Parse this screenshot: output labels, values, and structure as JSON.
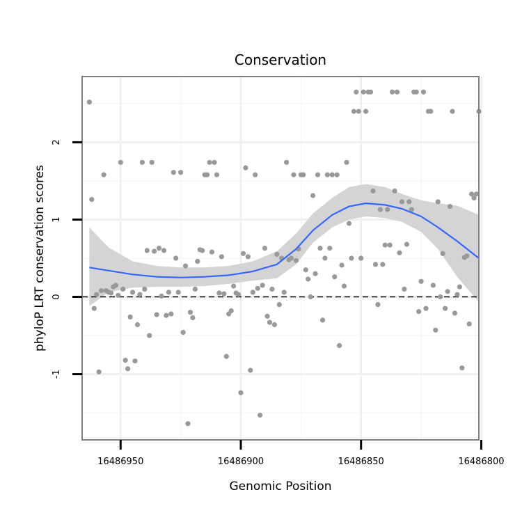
{
  "chart_data": {
    "type": "scatter",
    "title": "Conservation",
    "xlabel": "Genomic Position",
    "ylabel": "phyloP LRT conservation scores",
    "x_reversed": true,
    "xlim": [
      16486966,
      16486801
    ],
    "ylim": [
      -1.85,
      2.85
    ],
    "x_ticks": [
      16486950,
      16486900,
      16486850,
      16486800
    ],
    "x_tick_labels": [
      "16486950",
      "16486900",
      "16486850",
      "16486800"
    ],
    "y_ticks": [
      -1,
      0,
      1,
      2
    ],
    "y_tick_labels": [
      "-1",
      "0",
      "1",
      "2"
    ],
    "grid": true,
    "reference_line": {
      "y": 0,
      "style": "dashed"
    },
    "colors": {
      "points": "#999999",
      "smooth": "#3366ff",
      "ribbon": "#d4d4d4"
    },
    "points": [
      [
        16486963,
        2.52
      ],
      [
        16486962,
        1.26
      ],
      [
        16486961,
        -0.15
      ],
      [
        16486960,
        0.03
      ],
      [
        16486959,
        -0.97
      ],
      [
        16486958,
        0.08
      ],
      [
        16486957,
        1.58
      ],
      [
        16486956,
        0.08
      ],
      [
        16486955,
        0.06
      ],
      [
        16486954,
        0.05
      ],
      [
        16486953,
        0.13
      ],
      [
        16486952,
        0.15
      ],
      [
        16486951,
        0.02
      ],
      [
        16486950,
        1.74
      ],
      [
        16486949,
        0.1
      ],
      [
        16486948,
        -0.82
      ],
      [
        16486947,
        -0.93
      ],
      [
        16486946,
        -0.26
      ],
      [
        16486945,
        0.06
      ],
      [
        16486944,
        -0.83
      ],
      [
        16486943,
        -0.36
      ],
      [
        16486942,
        0.03
      ],
      [
        16486941,
        1.74
      ],
      [
        16486940,
        0.1
      ],
      [
        16486939,
        0.6
      ],
      [
        16486938,
        -0.5
      ],
      [
        16486937,
        1.74
      ],
      [
        16486936,
        0.59
      ],
      [
        16486935,
        -0.23
      ],
      [
        16486934,
        0.63
      ],
      [
        16486933,
        0.01
      ],
      [
        16486932,
        0.6
      ],
      [
        16486931,
        -0.24
      ],
      [
        16486930,
        0.06
      ],
      [
        16486929,
        -0.22
      ],
      [
        16486928,
        1.61
      ],
      [
        16486927,
        0.5
      ],
      [
        16486926,
        0.06
      ],
      [
        16486925,
        1.61
      ],
      [
        16486924,
        -0.46
      ],
      [
        16486923,
        0.4
      ],
      [
        16486922,
        -1.64
      ],
      [
        16486921,
        -0.2
      ],
      [
        16486920,
        -0.27
      ],
      [
        16486919,
        0.1
      ],
      [
        16486918,
        0.46
      ],
      [
        16486917,
        0.61
      ],
      [
        16486916,
        0.6
      ],
      [
        16486915,
        1.58
      ],
      [
        16486914,
        1.58
      ],
      [
        16486913,
        1.74
      ],
      [
        16486912,
        0.58
      ],
      [
        16486911,
        1.74
      ],
      [
        16486910,
        1.58
      ],
      [
        16486909,
        0.05
      ],
      [
        16486908,
        0.52
      ],
      [
        16486907,
        0.04
      ],
      [
        16486906,
        -0.77
      ],
      [
        16486905,
        -0.22
      ],
      [
        16486904,
        -0.18
      ],
      [
        16486903,
        0.14
      ],
      [
        16486902,
        0.05
      ],
      [
        16486901,
        0.03
      ],
      [
        16486900,
        -1.24
      ],
      [
        16486899,
        0.56
      ],
      [
        16486898,
        1.67
      ],
      [
        16486897,
        0.52
      ],
      [
        16486896,
        -0.95
      ],
      [
        16486895,
        0.06
      ],
      [
        16486894,
        1.58
      ],
      [
        16486893,
        0.11
      ],
      [
        16486892,
        -1.53
      ],
      [
        16486891,
        0.15
      ],
      [
        16486890,
        0.63
      ],
      [
        16486889,
        -0.25
      ],
      [
        16486888,
        -0.33
      ],
      [
        16486887,
        0.1
      ],
      [
        16486886,
        -0.36
      ],
      [
        16486885,
        0.55
      ],
      [
        16486884,
        -0.1
      ],
      [
        16486883,
        0.5
      ],
      [
        16486882,
        0.06
      ],
      [
        16486881,
        1.74
      ],
      [
        16486880,
        0.48
      ],
      [
        16486879,
        0.5
      ],
      [
        16486878,
        1.58
      ],
      [
        16486877,
        0.47
      ],
      [
        16486876,
        0.62
      ],
      [
        16486875,
        1.58
      ],
      [
        16486874,
        1.58
      ],
      [
        16486873,
        0.35
      ],
      [
        16486872,
        0.23
      ],
      [
        16486871,
        0.0
      ],
      [
        16486870,
        1.31
      ],
      [
        16486869,
        0.3
      ],
      [
        16486868,
        1.58
      ],
      [
        16486867,
        0.63
      ],
      [
        16486866,
        -0.3
      ],
      [
        16486865,
        0.5
      ],
      [
        16486864,
        1.58
      ],
      [
        16486863,
        0.63
      ],
      [
        16486862,
        1.58
      ],
      [
        16486861,
        0.26
      ],
      [
        16486860,
        1.58
      ],
      [
        16486859,
        -0.63
      ],
      [
        16486858,
        0.41
      ],
      [
        16486857,
        0.14
      ],
      [
        16486856,
        1.74
      ],
      [
        16486855,
        0.95
      ],
      [
        16486854,
        0.5
      ],
      [
        16486853,
        2.4
      ],
      [
        16486852,
        2.65
      ],
      [
        16486851,
        2.4
      ],
      [
        16486850,
        0.5
      ],
      [
        16486849,
        2.65
      ],
      [
        16486848,
        2.4
      ],
      [
        16486847,
        2.65
      ],
      [
        16486846,
        2.65
      ],
      [
        16486845,
        1.37
      ],
      [
        16486844,
        0.42
      ],
      [
        16486843,
        -0.1
      ],
      [
        16486842,
        1.13
      ],
      [
        16486841,
        0.42
      ],
      [
        16486840,
        0.67
      ],
      [
        16486839,
        1.13
      ],
      [
        16486838,
        0.67
      ],
      [
        16486837,
        2.65
      ],
      [
        16486836,
        1.37
      ],
      [
        16486835,
        2.65
      ],
      [
        16486834,
        0.57
      ],
      [
        16486833,
        1.23
      ],
      [
        16486832,
        0.1
      ],
      [
        16486831,
        0.68
      ],
      [
        16486830,
        1.23
      ],
      [
        16486829,
        1.13
      ],
      [
        16486828,
        2.65
      ],
      [
        16486827,
        2.65
      ],
      [
        16486826,
        -0.19
      ],
      [
        16486825,
        0.2
      ],
      [
        16486824,
        2.65
      ],
      [
        16486823,
        -0.15
      ],
      [
        16486822,
        2.4
      ],
      [
        16486821,
        2.4
      ],
      [
        16486820,
        0.15
      ],
      [
        16486819,
        -0.43
      ],
      [
        16486818,
        1.23
      ],
      [
        16486817,
        0.0
      ],
      [
        16486816,
        0.56
      ],
      [
        16486815,
        -0.15
      ],
      [
        16486814,
        0.07
      ],
      [
        16486813,
        1.17
      ],
      [
        16486812,
        2.4
      ],
      [
        16486811,
        -0.21
      ],
      [
        16486810,
        0.03
      ],
      [
        16486809,
        0.13
      ],
      [
        16486808,
        -0.92
      ],
      [
        16486807,
        0.51
      ],
      [
        16486806,
        0.53
      ],
      [
        16486805,
        -0.35
      ],
      [
        16486804,
        1.33
      ],
      [
        16486803,
        1.28
      ],
      [
        16486802,
        1.33
      ],
      [
        16486801,
        2.4
      ]
    ],
    "smooth": {
      "x": [
        16486963,
        16486955,
        16486945,
        16486935,
        16486925,
        16486915,
        16486905,
        16486895,
        16486885,
        16486877,
        16486870,
        16486862,
        16486855,
        16486848,
        16486840,
        16486833,
        16486825,
        16486818,
        16486810,
        16486801
      ],
      "y": [
        0.38,
        0.34,
        0.29,
        0.26,
        0.25,
        0.26,
        0.28,
        0.33,
        0.42,
        0.62,
        0.86,
        1.06,
        1.17,
        1.21,
        1.19,
        1.14,
        1.04,
        0.9,
        0.72,
        0.5
      ],
      "lower": [
        -0.12,
        0.06,
        0.12,
        0.13,
        0.13,
        0.14,
        0.17,
        0.21,
        0.24,
        0.42,
        0.7,
        0.9,
        1.0,
        1.04,
        1.02,
        0.97,
        0.84,
        0.62,
        0.26,
        -0.07
      ],
      "upper": [
        0.9,
        0.64,
        0.46,
        0.4,
        0.38,
        0.38,
        0.4,
        0.46,
        0.59,
        0.82,
        1.08,
        1.28,
        1.42,
        1.46,
        1.42,
        1.33,
        1.25,
        1.21,
        1.18,
        1.06
      ]
    }
  }
}
